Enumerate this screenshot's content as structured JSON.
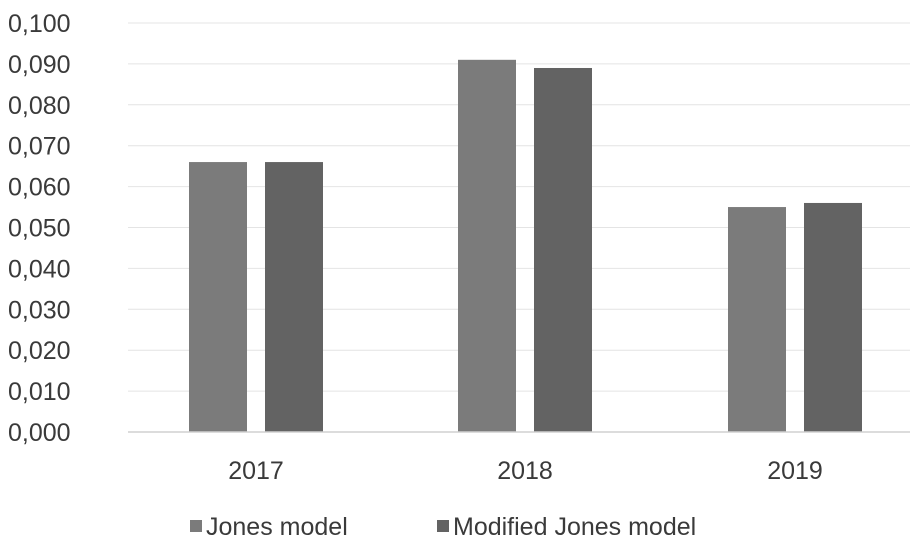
{
  "chart_data": {
    "type": "bar",
    "categories": [
      "2017",
      "2018",
      "2019"
    ],
    "series": [
      {
        "name": "Jones model",
        "values": [
          0.066,
          0.091,
          0.055
        ],
        "color": "#7b7b7b"
      },
      {
        "name": "Modified Jones model",
        "values": [
          0.066,
          0.089,
          0.056
        ],
        "color": "#636363"
      }
    ],
    "ylim": [
      0,
      0.1
    ],
    "yticks": [
      0.0,
      0.01,
      0.02,
      0.03,
      0.04,
      0.05,
      0.06,
      0.07,
      0.08,
      0.09,
      0.1
    ],
    "ytick_labels": [
      "0,000",
      "0,010",
      "0,020",
      "0,030",
      "0,040",
      "0,050",
      "0,060",
      "0,070",
      "0,080",
      "0,090",
      "0,100"
    ],
    "title": "",
    "xlabel": "",
    "ylabel": "",
    "grid": true,
    "legend_position": "bottom",
    "gridline_color": "#e4e4e4",
    "axis_color": "#d0d0d0"
  }
}
